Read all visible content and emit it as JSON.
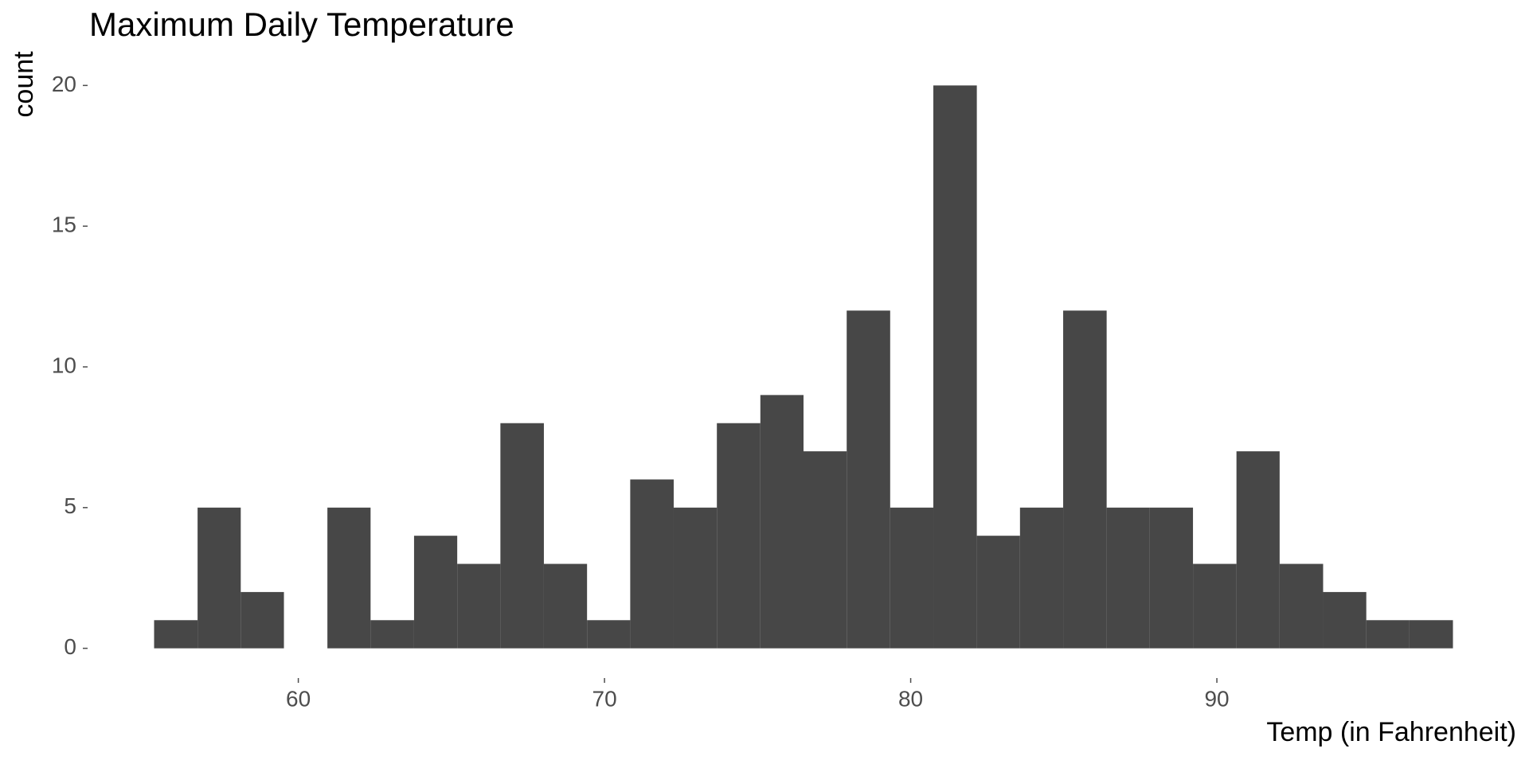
{
  "chart_data": {
    "type": "histogram",
    "title": "Maximum Daily Temperature",
    "x_label": "Temp (in Fahrenheit)",
    "y_label": "count",
    "bins": [
      55.29,
      56.71,
      58.12,
      59.53,
      60.95,
      62.36,
      63.78,
      65.19,
      66.6,
      68.02,
      69.43,
      70.84,
      72.26,
      73.67,
      75.09,
      76.5,
      77.91,
      79.33,
      80.74,
      82.16,
      83.57,
      84.98,
      86.4,
      87.81,
      89.22,
      90.64,
      92.05,
      93.47,
      94.88,
      96.29,
      97.71
    ],
    "values": [
      1,
      5,
      2,
      0,
      5,
      1,
      4,
      3,
      8,
      3,
      1,
      6,
      5,
      8,
      9,
      7,
      12,
      5,
      20,
      4,
      5,
      12,
      5,
      5,
      3,
      7,
      3,
      2,
      1,
      1
    ],
    "color": "#474747",
    "xlim": [
      53.17,
      99.83
    ],
    "xticks": [
      60,
      70,
      80,
      90
    ],
    "ylim": [
      -1,
      21
    ],
    "yticks": [
      0,
      5,
      10,
      15,
      20
    ],
    "grid": false
  }
}
